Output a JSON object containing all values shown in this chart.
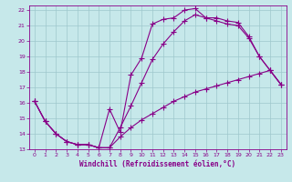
{
  "xlabel": "Windchill (Refroidissement éolien,°C)",
  "background_color": "#c6e8ea",
  "grid_color": "#9ec8cc",
  "line_color": "#880088",
  "xlim": [
    -0.5,
    23.5
  ],
  "ylim": [
    13,
    22.3
  ],
  "xticks": [
    0,
    1,
    2,
    3,
    4,
    5,
    6,
    7,
    8,
    9,
    10,
    11,
    12,
    13,
    14,
    15,
    16,
    17,
    18,
    19,
    20,
    21,
    22,
    23
  ],
  "yticks": [
    13,
    14,
    15,
    16,
    17,
    18,
    19,
    20,
    21,
    22
  ],
  "line1_x": [
    0,
    1,
    2,
    3,
    4,
    5,
    6,
    7,
    8,
    9,
    10,
    11,
    12,
    13,
    14,
    15,
    16,
    17,
    18,
    19,
    20,
    21,
    22,
    23
  ],
  "line1_y": [
    16.1,
    14.8,
    14.0,
    13.5,
    13.3,
    13.3,
    13.1,
    15.6,
    14.1,
    17.8,
    18.9,
    21.1,
    21.4,
    21.5,
    22.0,
    22.1,
    21.5,
    21.5,
    21.3,
    21.2,
    20.3,
    19.0,
    18.1,
    17.2
  ],
  "line2_x": [
    0,
    1,
    2,
    3,
    4,
    5,
    6,
    7,
    8,
    9,
    10,
    11,
    12,
    13,
    14,
    15,
    16,
    17,
    18,
    19,
    20,
    21,
    22,
    23
  ],
  "line2_y": [
    16.1,
    14.8,
    14.0,
    13.5,
    13.3,
    13.3,
    13.1,
    13.1,
    13.8,
    14.4,
    14.9,
    15.3,
    15.7,
    16.1,
    16.4,
    16.7,
    16.9,
    17.1,
    17.3,
    17.5,
    17.7,
    17.9,
    18.1,
    17.2
  ],
  "line3_x": [
    0,
    1,
    2,
    3,
    4,
    5,
    6,
    7,
    8,
    9,
    10,
    11,
    12,
    13,
    14,
    15,
    16,
    17,
    18,
    19,
    20,
    21,
    22,
    23
  ],
  "line3_y": [
    16.1,
    14.8,
    14.0,
    13.5,
    13.3,
    13.3,
    13.1,
    13.1,
    14.4,
    15.8,
    17.3,
    18.8,
    19.8,
    20.6,
    21.3,
    21.7,
    21.5,
    21.3,
    21.1,
    21.0,
    20.2,
    19.0,
    18.1,
    17.2
  ],
  "marker": "+",
  "markersize": 4,
  "linewidth": 0.8,
  "tick_fontsize": 4.5,
  "label_fontsize": 5.5
}
